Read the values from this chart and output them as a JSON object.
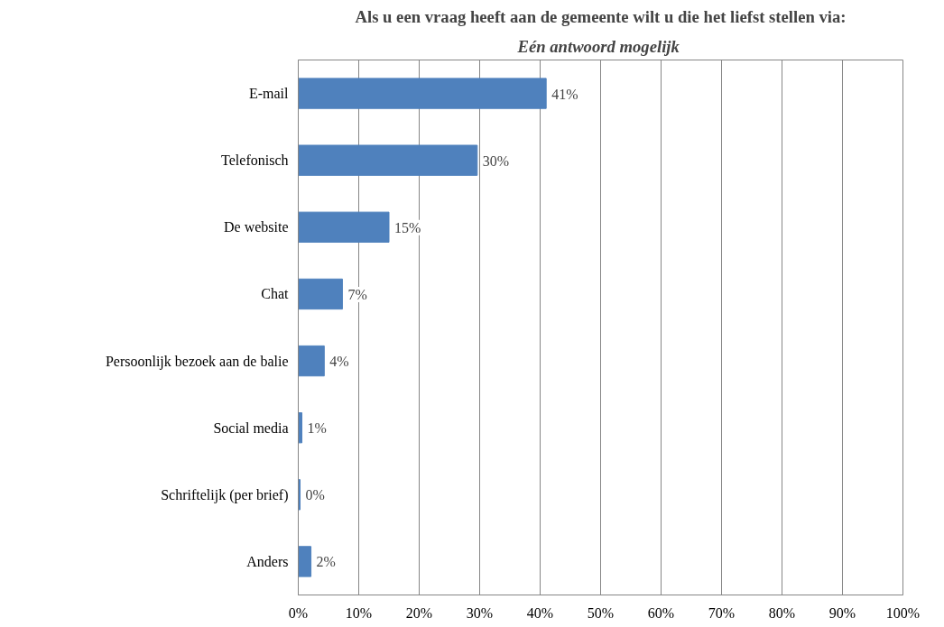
{
  "chart_data": {
    "type": "bar",
    "orientation": "horizontal",
    "title": "Als u een vraag heeft aan de gemeente wilt u die het liefst stellen via:",
    "subtitle": "Eén antwoord  mogelijk",
    "categories": [
      "E-mail",
      "Telefonisch",
      "De website",
      "Chat",
      "Persoonlijk bezoek aan de balie",
      "Social media",
      "Schriftelijk (per brief)",
      "Anders"
    ],
    "values": [
      41,
      29.6,
      15,
      7.3,
      4.3,
      0.6,
      0.3,
      2.1
    ],
    "value_labels": [
      "41%",
      "30%",
      "15%",
      "7%",
      "4%",
      "1%",
      "0%",
      "2%"
    ],
    "color": "#4f81bd",
    "xlim": [
      0,
      100
    ],
    "xticks": [
      {
        "value": 0,
        "label": "0%"
      },
      {
        "value": 10,
        "label": "10%"
      },
      {
        "value": 20,
        "label": "20%"
      },
      {
        "value": 30,
        "label": "30%"
      },
      {
        "value": 40,
        "label": "40%"
      },
      {
        "value": 50,
        "label": "50%"
      },
      {
        "value": 60,
        "label": "60%"
      },
      {
        "value": 70,
        "label": "70%"
      },
      {
        "value": 80,
        "label": "80%"
      },
      {
        "value": 90,
        "label": "90%"
      },
      {
        "value": 100,
        "label": "100%"
      }
    ],
    "grid": "x"
  }
}
